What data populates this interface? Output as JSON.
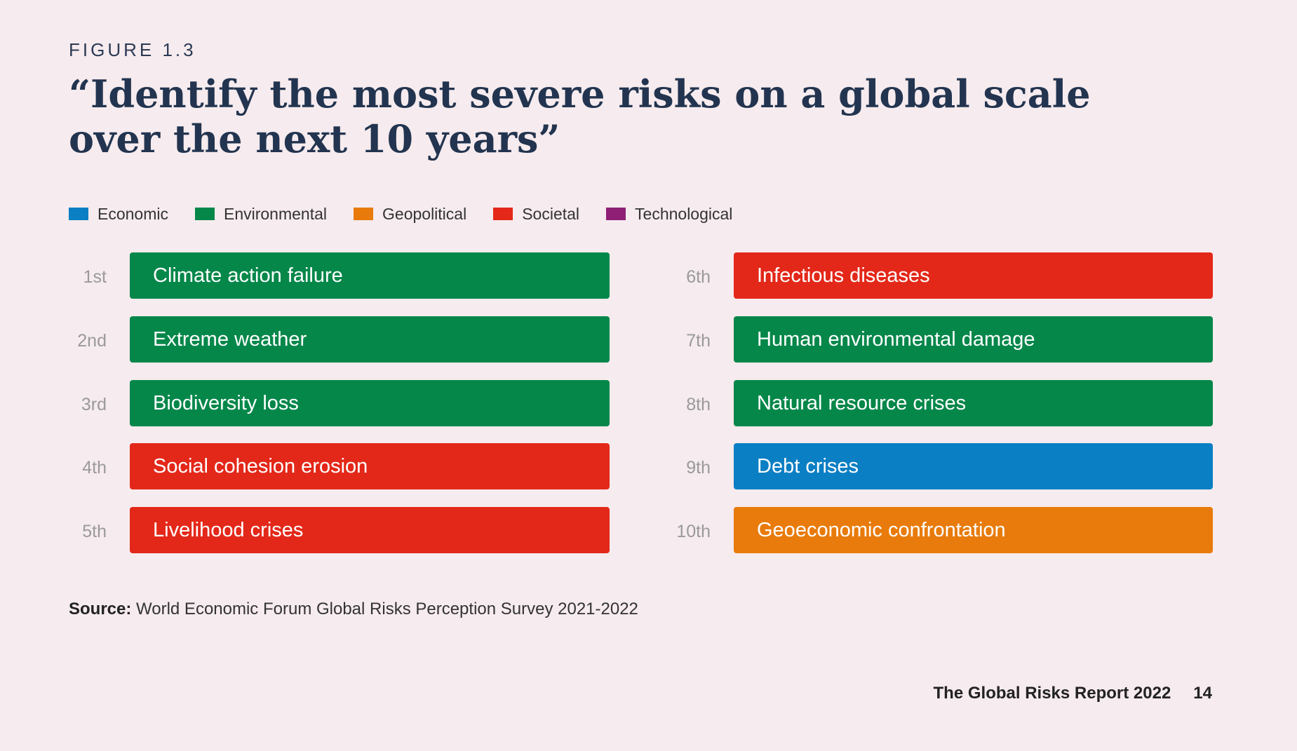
{
  "figure_label": "FIGURE 1.3",
  "title": "“Identify the most severe risks on a global scale over the next 10 years”",
  "legend": [
    {
      "label": "Economic",
      "color": "#0a7fc4"
    },
    {
      "label": "Environmental",
      "color": "#05874a"
    },
    {
      "label": "Geopolitical",
      "color": "#e87b0b"
    },
    {
      "label": "Societal",
      "color": "#e32819"
    },
    {
      "label": "Technological",
      "color": "#8e1f75"
    }
  ],
  "risks": [
    {
      "rank": "1st",
      "label": "Climate action failure",
      "category": "Environmental",
      "color": "#05874a"
    },
    {
      "rank": "2nd",
      "label": "Extreme weather",
      "category": "Environmental",
      "color": "#05874a"
    },
    {
      "rank": "3rd",
      "label": "Biodiversity loss",
      "category": "Environmental",
      "color": "#05874a"
    },
    {
      "rank": "4th",
      "label": "Social cohesion erosion",
      "category": "Societal",
      "color": "#e32819"
    },
    {
      "rank": "5th",
      "label": "Livelihood crises",
      "category": "Societal",
      "color": "#e32819"
    },
    {
      "rank": "6th",
      "label": "Infectious diseases",
      "category": "Societal",
      "color": "#e32819"
    },
    {
      "rank": "7th",
      "label": "Human environmental damage",
      "category": "Environmental",
      "color": "#05874a"
    },
    {
      "rank": "8th",
      "label": "Natural resource crises",
      "category": "Environmental",
      "color": "#05874a"
    },
    {
      "rank": "9th",
      "label": "Debt crises",
      "category": "Economic",
      "color": "#0a7fc4"
    },
    {
      "rank": "10th",
      "label": "Geoeconomic confrontation",
      "category": "Geopolitical",
      "color": "#e87b0b"
    }
  ],
  "source": {
    "label": "Source:",
    "text": " World Economic Forum Global Risks Perception Survey 2021-2022"
  },
  "footer": {
    "report": "The Global Risks Report 2022",
    "page": "14"
  }
}
